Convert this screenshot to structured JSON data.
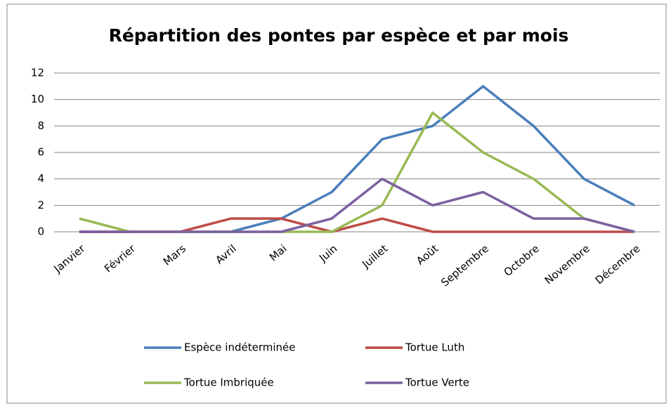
{
  "chart_data": {
    "type": "line",
    "title": "Répartition des pontes par espèce et par mois",
    "categories": [
      "Janvier",
      "Février",
      "Mars",
      "Avril",
      "Mai",
      "Juin",
      "Juillet",
      "Août",
      "Septembre",
      "Octobre",
      "Novembre",
      "Décembre"
    ],
    "series": [
      {
        "name": "Espèce indéterminée",
        "color": "#4a7ebb",
        "values": [
          0,
          0,
          0,
          0,
          1,
          3,
          7,
          8,
          11,
          8,
          4,
          2
        ]
      },
      {
        "name": "Tortue Luth",
        "color": "#be4b48",
        "values": [
          0,
          0,
          0,
          1,
          1,
          0,
          1,
          0,
          0,
          0,
          0,
          0
        ]
      },
      {
        "name": "Tortue Imbriquée",
        "color": "#98b954",
        "values": [
          1,
          0,
          0,
          0,
          0,
          0,
          2,
          9,
          6,
          4,
          1,
          0
        ]
      },
      {
        "name": "Tortue Verte",
        "color": "#7d60a0",
        "values": [
          0,
          0,
          0,
          0,
          0,
          1,
          4,
          2,
          3,
          1,
          1,
          0
        ]
      }
    ],
    "ylim": [
      0,
      12
    ],
    "yticks": [
      0,
      2,
      4,
      6,
      8,
      10,
      12
    ],
    "grid": true,
    "legend": "bottom"
  }
}
